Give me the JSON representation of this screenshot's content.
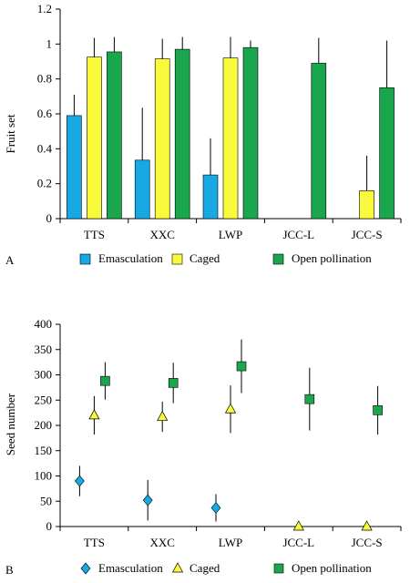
{
  "colors": {
    "emasculation": "#16a9e4",
    "caged": "#fafa3c",
    "open": "#1aa64c",
    "axis": "#000000",
    "errorbar": "#000000"
  },
  "chart_data": [
    {
      "panel": "A",
      "type": "bar",
      "ylabel": "Fruit set",
      "xlabel": "",
      "ylim": [
        0,
        1.2
      ],
      "yticks": [
        "0",
        "0.2",
        "0.4",
        "0.6",
        "0.8",
        "1",
        "1.2"
      ],
      "grid": false,
      "legend_position": "bottom",
      "categories": [
        "TTS",
        "XXC",
        "LWP",
        "JCC-L",
        "JCC-S"
      ],
      "series": [
        {
          "name": "Emasculation",
          "marker": "bar",
          "values": [
            0.59,
            0.335,
            0.25,
            null,
            null
          ],
          "errors": [
            0.12,
            0.3,
            0.21,
            null,
            null
          ]
        },
        {
          "name": "Caged",
          "marker": "bar",
          "values": [
            0.925,
            0.915,
            0.92,
            null,
            0.16
          ],
          "errors": [
            0.11,
            0.115,
            0.12,
            null,
            0.2
          ]
        },
        {
          "name": "Open pollination",
          "marker": "bar",
          "values": [
            0.955,
            0.97,
            0.98,
            0.89,
            0.75
          ],
          "errors": [
            0.085,
            0.07,
            0.04,
            0.145,
            0.27
          ]
        }
      ]
    },
    {
      "panel": "B",
      "type": "scatter",
      "ylabel": "Seed  number",
      "xlabel": "",
      "ylim": [
        0,
        400
      ],
      "yticks": [
        "0",
        "50",
        "100",
        "150",
        "200",
        "250",
        "300",
        "350",
        "400"
      ],
      "grid": false,
      "legend_position": "bottom",
      "categories": [
        "TTS",
        "XXC",
        "LWP",
        "JCC-L",
        "JCC-S"
      ],
      "series": [
        {
          "name": "Emasculation",
          "marker": "diamond",
          "values": [
            90,
            52,
            37,
            null,
            null
          ],
          "errors": [
            30,
            40,
            27,
            null,
            null
          ]
        },
        {
          "name": "Caged",
          "marker": "triangle",
          "values": [
            220,
            217,
            232,
            0,
            0
          ],
          "errors": [
            38,
            30,
            47,
            0,
            0
          ]
        },
        {
          "name": "Open pollination",
          "marker": "square",
          "values": [
            288,
            284,
            317,
            252,
            230
          ],
          "errors": [
            37,
            40,
            53,
            62,
            48
          ]
        }
      ]
    }
  ]
}
